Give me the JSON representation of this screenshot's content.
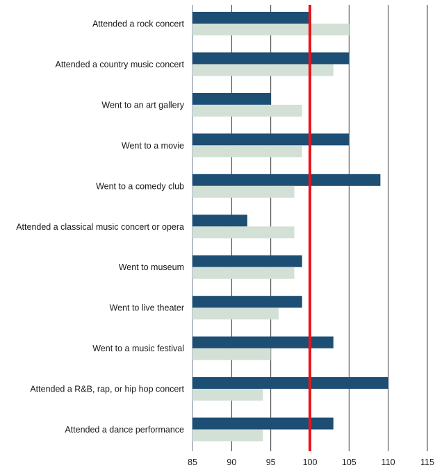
{
  "chart_data": {
    "type": "bar",
    "orientation": "horizontal",
    "categories": [
      "Attended a rock concert",
      "Attended a country music concert",
      "Went to an art gallery",
      "Went to a movie",
      "Went to a comedy club",
      "Attended a classical music concert or opera",
      "Went to museum",
      "Went to live theater",
      "Went to a music festival",
      "Attended a R&B, rap, or hip hop concert",
      "Attended a dance performance"
    ],
    "series": [
      {
        "values": [
          100,
          105,
          95,
          105,
          109,
          92,
          99,
          99,
          103,
          110,
          103
        ],
        "color": "#1d4e74"
      },
      {
        "values": [
          105,
          103,
          99,
          99,
          98,
          98,
          98,
          96,
          95,
          94,
          94
        ],
        "color": "#d3e0d6"
      }
    ],
    "xlim": [
      85,
      115
    ],
    "xticks": [
      "85",
      "90",
      "95",
      "100",
      "105",
      "110",
      "115"
    ],
    "reference_line": {
      "value": 100,
      "color": "#e8141c"
    },
    "grid": "vertical",
    "legend": "none"
  }
}
